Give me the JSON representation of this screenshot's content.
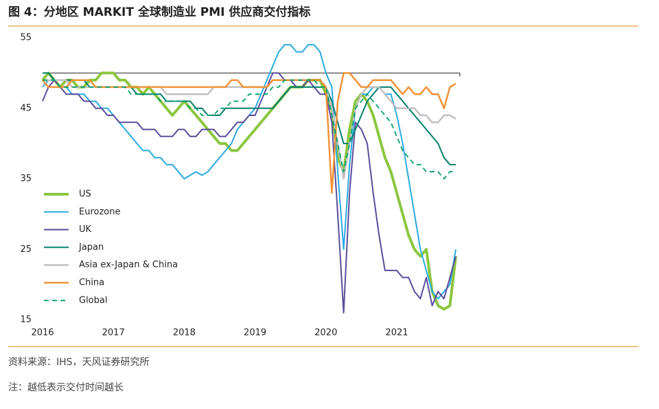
{
  "chart_data": {
    "type": "line",
    "title": "图 4：分地区 MARKIT 全球制造业 PMI 供应商交付指标",
    "source": "资料来源：IHS，天风证券研究所",
    "note": "注：越低表示交付时间越长",
    "categories": [
      "2016",
      null,
      null,
      null,
      null,
      null,
      null,
      null,
      null,
      null,
      null,
      null,
      "2017",
      null,
      null,
      null,
      null,
      null,
      null,
      null,
      null,
      null,
      null,
      null,
      "2018",
      null,
      null,
      null,
      null,
      null,
      null,
      null,
      null,
      null,
      null,
      null,
      "2019",
      null,
      null,
      null,
      null,
      null,
      null,
      null,
      null,
      null,
      null,
      null,
      "2020",
      null,
      null,
      null,
      null,
      null,
      null,
      null,
      null,
      null,
      null,
      null,
      "2021",
      null,
      null,
      null,
      null,
      null,
      null,
      null,
      null,
      null,
      null
    ],
    "ylim": [
      15,
      55
    ],
    "yticks": [
      15,
      25,
      35,
      45,
      55
    ],
    "hline": 50,
    "series": [
      {
        "name": "US",
        "color": "#8cc63f",
        "width": 4,
        "values": [
          49,
          50,
          49,
          48,
          49,
          49,
          48,
          48,
          49,
          49,
          50,
          50,
          50,
          49,
          49,
          48,
          48,
          47,
          48,
          47,
          46,
          45,
          44,
          45,
          46,
          45,
          44,
          43,
          42,
          41,
          40,
          40,
          39,
          39,
          40,
          41,
          42,
          43,
          44,
          45,
          46,
          47,
          48,
          48,
          48,
          49,
          49,
          49,
          47,
          45,
          38,
          36,
          42,
          46,
          47,
          46,
          44,
          41,
          38,
          36,
          33,
          30,
          27,
          25,
          24,
          25,
          19,
          17,
          16.5,
          17,
          24
        ]
      },
      {
        "name": "Eurozone",
        "color": "#29aae1",
        "width": 2,
        "values": [
          48,
          49,
          49,
          48,
          48,
          47,
          47,
          47,
          46,
          46,
          45,
          45,
          44,
          43,
          42,
          41,
          40,
          39,
          39,
          38,
          38,
          37,
          37,
          36,
          35,
          35.5,
          36,
          35.5,
          36,
          37,
          38,
          39,
          40,
          42,
          43,
          44,
          45,
          47,
          49,
          51,
          53,
          54,
          54,
          53,
          53,
          54,
          54,
          53,
          50,
          48,
          36,
          25,
          37,
          45,
          47,
          47,
          48,
          48,
          47,
          47,
          44,
          40,
          35,
          30,
          25,
          22,
          19,
          18,
          19,
          20,
          25
        ]
      },
      {
        "name": "UK",
        "color": "#5b4b9a",
        "width": 2,
        "values": [
          46,
          48,
          49,
          48,
          47,
          47,
          47,
          46,
          46,
          45,
          45,
          44,
          44,
          43,
          43,
          43,
          43,
          42,
          42,
          42,
          41,
          41,
          41,
          42,
          42,
          41,
          41,
          42,
          42,
          42,
          41,
          41,
          42,
          43,
          43,
          44,
          44,
          46,
          48,
          50,
          50,
          49,
          49,
          48,
          48,
          49,
          48,
          47,
          47,
          43,
          30,
          16,
          33,
          43,
          42,
          40,
          33,
          27,
          22,
          22,
          22,
          21,
          21,
          19,
          18,
          21,
          17,
          19,
          18,
          21,
          24
        ]
      },
      {
        "name": "Japan",
        "color": "#007f6e",
        "width": 2,
        "values": [
          50,
          50,
          49,
          49,
          49,
          49,
          49,
          49,
          48,
          48,
          48,
          48,
          48,
          48,
          48,
          48,
          47,
          47,
          47,
          47,
          47,
          46,
          46,
          46,
          46,
          46,
          45,
          45,
          44,
          44,
          44,
          45,
          45,
          45,
          45,
          45,
          45,
          45,
          45,
          45,
          46,
          47,
          48,
          48,
          48,
          48,
          48,
          48,
          48,
          46,
          43,
          40,
          40,
          42,
          44,
          46,
          47,
          48,
          48,
          48,
          47,
          46,
          45,
          44,
          43,
          42,
          41,
          40,
          38,
          37,
          37
        ]
      },
      {
        "name": "Asia ex-Japan & China",
        "color": "#c0c0c0",
        "width": 2.5,
        "values": [
          49,
          49,
          49,
          49,
          49,
          48,
          48,
          48,
          48,
          48,
          48,
          48,
          48,
          48,
          48,
          48,
          48,
          48,
          48,
          48,
          48,
          47,
          47,
          47,
          47,
          47,
          47,
          47,
          47,
          48,
          48,
          48,
          48,
          48,
          48,
          48,
          48,
          48,
          48,
          49,
          49,
          49,
          49,
          49,
          49,
          49,
          49,
          49,
          48,
          45,
          40,
          35,
          40,
          45,
          47,
          48,
          48,
          48,
          47,
          46,
          45,
          45,
          45,
          45,
          44,
          44,
          43,
          43,
          44,
          44,
          43.5
        ]
      },
      {
        "name": "China",
        "color": "#f39237",
        "width": 2.5,
        "values": [
          49,
          48,
          48,
          48,
          48,
          49,
          49,
          49,
          49,
          48,
          48,
          48,
          48,
          48,
          48,
          48,
          48,
          48,
          48,
          48,
          48,
          48,
          48,
          48,
          48,
          48,
          48,
          48,
          48,
          48,
          48,
          48,
          49,
          49,
          48,
          48,
          48,
          48,
          48,
          49,
          49,
          49,
          49,
          49,
          49,
          49,
          49,
          49,
          48,
          33,
          46,
          50,
          50,
          49,
          48,
          48,
          49,
          49,
          49,
          49,
          48,
          47,
          48,
          47,
          47,
          48,
          47,
          47,
          45,
          48,
          48.5
        ]
      },
      {
        "name": "Global",
        "color": "#00a06a",
        "width": 1.8,
        "dashed": true,
        "values": [
          49,
          49,
          49,
          48,
          48,
          48,
          48,
          48,
          48,
          48,
          48,
          48,
          48,
          48,
          48,
          47,
          47,
          47,
          47,
          47,
          46,
          46,
          46,
          46,
          46,
          45,
          45,
          44,
          44,
          44,
          45,
          45,
          46,
          46,
          46,
          47,
          47,
          47,
          47,
          48,
          48,
          49,
          49,
          49,
          49,
          49,
          49,
          48,
          48,
          44,
          40,
          36,
          40,
          45,
          46,
          47,
          46,
          45,
          44,
          43,
          41,
          39,
          38,
          37,
          37,
          36,
          36,
          36,
          35,
          36,
          36
        ]
      }
    ]
  }
}
